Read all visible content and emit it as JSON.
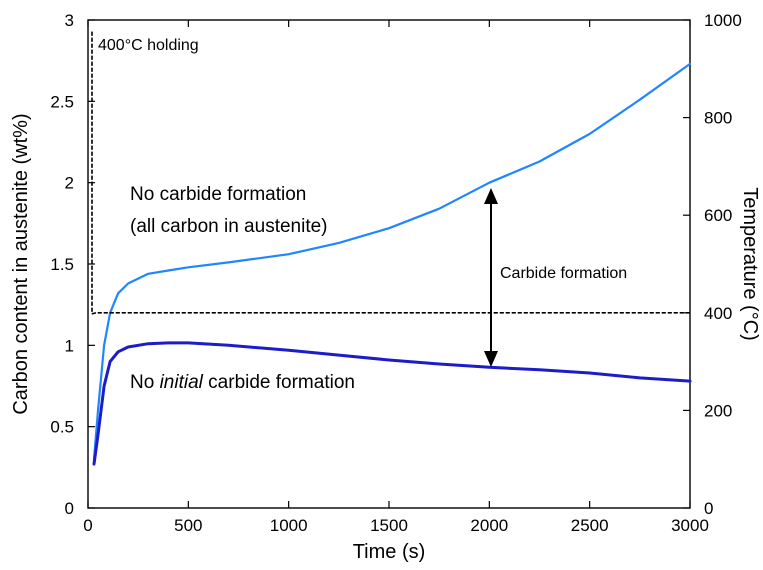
{
  "chart_data": {
    "type": "line",
    "xlabel": "Time (s)",
    "ylabel": "Carbon content in austenite (wt%)",
    "y2label": "Temperature (°C)",
    "xlim": [
      0,
      3000
    ],
    "ylim": [
      0,
      3
    ],
    "y2lim": [
      0,
      1000
    ],
    "xticks": [
      "0",
      "500",
      "1000",
      "1500",
      "2000",
      "2500",
      "3000"
    ],
    "yticks": [
      "0",
      "0.5",
      "1",
      "1.5",
      "2",
      "2.5",
      "3"
    ],
    "y2ticks": [
      "0",
      "200",
      "400",
      "600",
      "800",
      "1000"
    ],
    "grid": false,
    "series": [
      {
        "name": "No carbide formation (all carbon in austenite)",
        "color": "#1f86ff",
        "axis": "left",
        "x": [
          30,
          50,
          80,
          110,
          150,
          200,
          300,
          400,
          500,
          700,
          1000,
          1250,
          1500,
          1750,
          2000,
          2250,
          2500,
          2750,
          3000
        ],
        "y": [
          0.3,
          0.6,
          1.0,
          1.2,
          1.32,
          1.38,
          1.44,
          1.46,
          1.48,
          1.51,
          1.56,
          1.63,
          1.72,
          1.84,
          2.0,
          2.13,
          2.3,
          2.51,
          2.73
        ]
      },
      {
        "name": "No initial carbide formation",
        "color": "#1c1cc9",
        "axis": "left",
        "x": [
          30,
          50,
          80,
          110,
          150,
          200,
          300,
          400,
          500,
          700,
          1000,
          1250,
          1500,
          1750,
          2000,
          2250,
          2500,
          2750,
          3000
        ],
        "y": [
          0.27,
          0.45,
          0.75,
          0.9,
          0.96,
          0.99,
          1.01,
          1.015,
          1.015,
          1.0,
          0.97,
          0.94,
          0.91,
          0.885,
          0.865,
          0.85,
          0.83,
          0.8,
          0.78
        ]
      },
      {
        "name": "Temperature",
        "color": "#000000",
        "dash": "3,3",
        "axis": "right",
        "x": [
          20,
          20,
          40,
          3000
        ],
        "y": [
          975,
          398,
          400,
          400
        ]
      }
    ],
    "annotations": [
      {
        "id": "holding",
        "text": "400°C holding"
      },
      {
        "id": "no-carbide-1",
        "text": "No carbide formation"
      },
      {
        "id": "no-carbide-2",
        "text": "(all carbon in austenite)"
      },
      {
        "id": "carbide-formation",
        "text": "Carbide formation"
      },
      {
        "id": "no-initial",
        "text": "No initial carbide formation"
      }
    ]
  }
}
